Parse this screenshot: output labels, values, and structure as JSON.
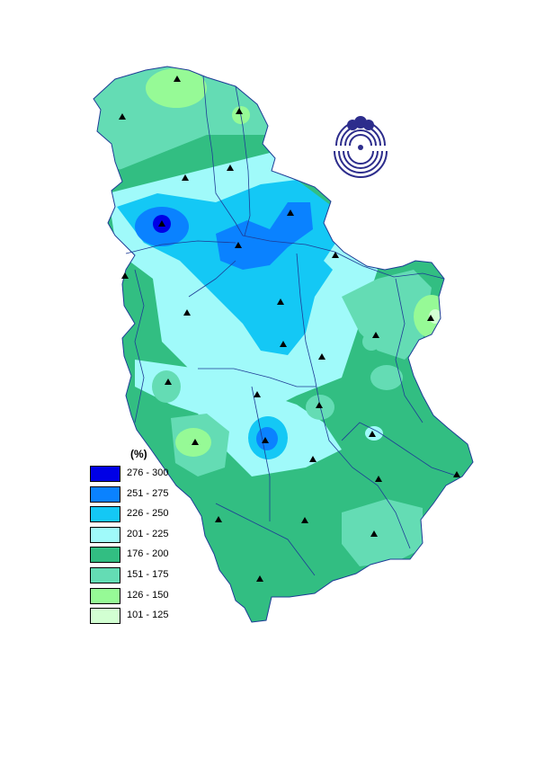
{
  "legend": {
    "title": "(%)",
    "classes": [
      {
        "range": "276 - 300",
        "color": "#0000e6"
      },
      {
        "range": "251 - 275",
        "color": "#0a82ff"
      },
      {
        "range": "226 - 250",
        "color": "#14c8f5"
      },
      {
        "range": "201 - 225",
        "color": "#a0fafa"
      },
      {
        "range": "176 - 200",
        "color": "#32be82"
      },
      {
        "range": "151 - 175",
        "color": "#64dcb4"
      },
      {
        "range": "126 - 150",
        "color": "#96fa96"
      },
      {
        "range": "101 - 125",
        "color": "#d2ffd2"
      }
    ]
  },
  "colors": {
    "river": "#1e3c96",
    "border": "#1e3c96",
    "logo": "#2d2d8c",
    "station_marker": "#000000"
  },
  "icons": {
    "station": "triangle-marker-icon",
    "logo": "hydrometeorological-service-emblem"
  }
}
